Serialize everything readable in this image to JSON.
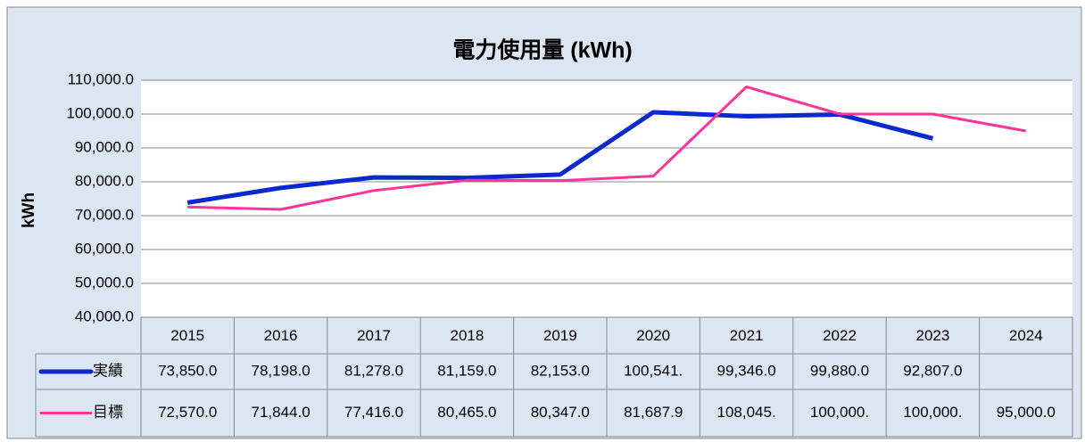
{
  "chart_data": {
    "type": "line",
    "title": "電力使用量 (kWh)",
    "y_label": "kWh",
    "categories": [
      "2015",
      "2016",
      "2017",
      "2018",
      "2019",
      "2020",
      "2021",
      "2022",
      "2023",
      "2024"
    ],
    "series": [
      {
        "name": "実績",
        "color": "#0a2ad0",
        "values": [
          73850,
          78198,
          81278,
          81159,
          82153,
          100541,
          99346,
          99880,
          92807,
          null
        ],
        "value_labels": [
          "73,850.0",
          "78,198.0",
          "81,278.0",
          "81,159.0",
          "82,153.0",
          "100,541.",
          "99,346.0",
          "99,880.0",
          "92,807.0",
          null
        ]
      },
      {
        "name": "目標",
        "color": "#ff3399",
        "values": [
          72570,
          71844,
          77416,
          80465,
          80347,
          81687.9,
          108045,
          100000,
          100000,
          95000
        ],
        "value_labels": [
          "72,570.0",
          "71,844.0",
          "77,416.0",
          "80,465.0",
          "80,347.0",
          "81,687.9",
          "108,045.",
          "100,000.",
          "100,000.",
          "95,000.0"
        ]
      }
    ],
    "ylim": [
      40000,
      110000
    ],
    "yticks": [
      {
        "value": 40000,
        "label": "40,000.0"
      },
      {
        "value": 50000,
        "label": "50,000.0"
      },
      {
        "value": 60000,
        "label": "60,000.0"
      },
      {
        "value": 70000,
        "label": "70,000.0"
      },
      {
        "value": 80000,
        "label": "80,000.0"
      },
      {
        "value": 90000,
        "label": "90,000.0"
      },
      {
        "value": 100000,
        "label": "100,000.0"
      },
      {
        "value": 110000,
        "label": "110,000.0"
      }
    ],
    "grid": true
  }
}
